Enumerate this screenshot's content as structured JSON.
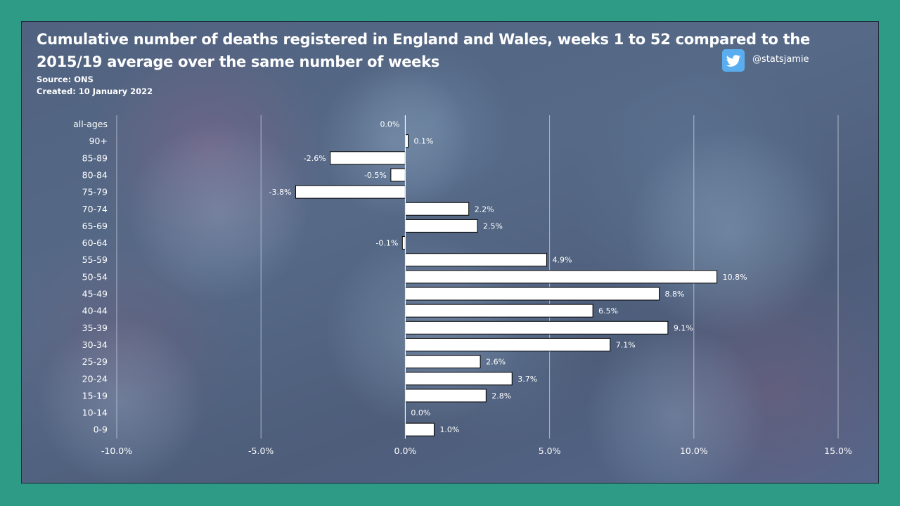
{
  "header": {
    "title": "Cumulative number of deaths registered in England and Wales, weeks 1 to 52 compared to the 2015/19 average over the same number of weeks",
    "source": "Source: ONS",
    "created": "Created: 10 January 2022",
    "twitter_handle": "@statsjamie"
  },
  "icons": {
    "social": "twitter-bird-icon"
  },
  "colors": {
    "frame_background": "#2e9b87",
    "bar_fill": "#ffffff",
    "bar_stroke": "#000000",
    "text": "#ffffff",
    "twitter_blue": "#5aaef0"
  },
  "chart_data": {
    "type": "bar",
    "orientation": "horizontal",
    "title": "Cumulative number of deaths registered in England and Wales, weeks 1 to 52 compared to the 2015/19 average over the same number of weeks",
    "categories": [
      "all-ages",
      "90+",
      "85-89",
      "80-84",
      "75-79",
      "70-74",
      "65-69",
      "60-64",
      "55-59",
      "50-54",
      "45-49",
      "40-44",
      "35-39",
      "30-34",
      "25-29",
      "20-24",
      "15-19",
      "10-14",
      "0-9"
    ],
    "values": [
      0.0,
      0.1,
      -2.6,
      -0.5,
      -3.8,
      2.2,
      2.5,
      -0.1,
      4.9,
      10.8,
      8.8,
      6.5,
      9.1,
      7.1,
      2.6,
      3.7,
      2.8,
      0.0,
      1.0
    ],
    "data_labels": [
      "0.0%",
      "0.1%",
      "-2.6%",
      "-0.5%",
      "-3.8%",
      "2.2%",
      "2.5%",
      "-0.1%",
      "4.9%",
      "10.8%",
      "8.8%",
      "6.5%",
      "9.1%",
      "7.1%",
      "2.6%",
      "3.7%",
      "2.8%",
      "0.0%",
      "1.0%"
    ],
    "xlim": [
      -10,
      15
    ],
    "x_ticks": [
      -10,
      -5,
      0,
      5,
      10,
      15
    ],
    "x_tick_labels": [
      "-10.0%",
      "-5.0%",
      "0.0%",
      "5.0%",
      "10.0%",
      "15.0%"
    ],
    "xlabel": "",
    "ylabel": "",
    "grid": "vertical",
    "legend": "none"
  }
}
